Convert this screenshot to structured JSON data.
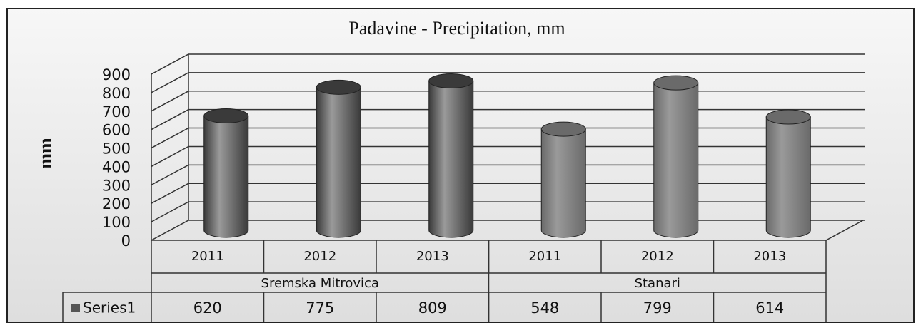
{
  "chart_data": {
    "type": "bar3d",
    "title": "Padavine - Precipitation, mm",
    "y_label": "mm",
    "groups": [
      {
        "name": "Sremska Mitrovica",
        "categories": [
          "2011",
          "2012",
          "2013"
        ],
        "color": "#3a3a3a"
      },
      {
        "name": "Stanari",
        "categories": [
          "2011",
          "2012",
          "2013"
        ],
        "color": "#6a6a6a"
      }
    ],
    "series": [
      {
        "name": "Series1",
        "color": "#555555",
        "values": [
          620,
          775,
          809,
          548,
          799,
          614
        ]
      }
    ],
    "ylim": [
      0,
      900
    ],
    "yticks": [
      0,
      100,
      200,
      300,
      400,
      500,
      600,
      700,
      800,
      900
    ],
    "grid": true
  }
}
